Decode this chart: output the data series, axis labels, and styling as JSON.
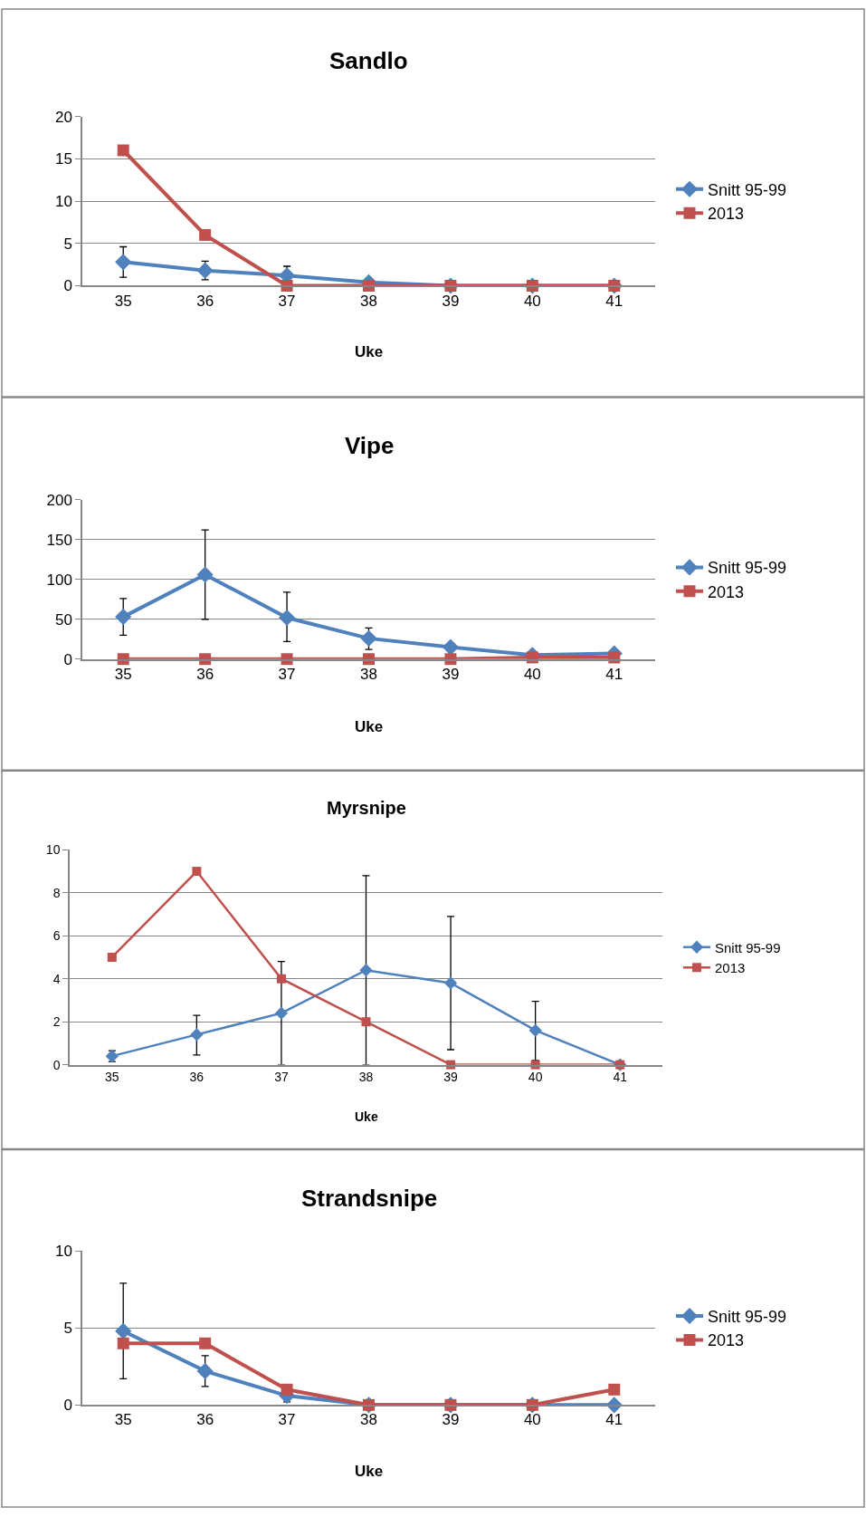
{
  "chart_data": [
    {
      "type": "line",
      "title": "Sandlo",
      "xlabel": "Uke",
      "categories": [
        "35",
        "36",
        "37",
        "38",
        "39",
        "40",
        "41"
      ],
      "ylim": [
        0,
        20
      ],
      "yticks": [
        0,
        5,
        10,
        15,
        20
      ],
      "grid": "y",
      "legend": "right",
      "series": [
        {
          "name": "Snitt 95-99",
          "color": "#4f81bd",
          "marker": "diamond",
          "values": [
            2.8,
            1.8,
            1.2,
            0.4,
            0,
            0,
            0
          ],
          "errors": [
            [
              1.0,
              4.6
            ],
            [
              0.7,
              2.9
            ],
            [
              0.1,
              2.3
            ],
            null,
            null,
            null,
            null
          ]
        },
        {
          "name": "2013",
          "color": "#c0504d",
          "marker": "square",
          "values": [
            16,
            6,
            0,
            0,
            0,
            0,
            0
          ]
        }
      ]
    },
    {
      "type": "line",
      "title": "Vipe",
      "xlabel": "Uke",
      "categories": [
        "35",
        "36",
        "37",
        "38",
        "39",
        "40",
        "41"
      ],
      "ylim": [
        0,
        200
      ],
      "yticks": [
        0,
        50,
        100,
        150,
        200
      ],
      "grid": "y",
      "legend": "right",
      "series": [
        {
          "name": "Snitt 95-99",
          "color": "#4f81bd",
          "marker": "diamond",
          "values": [
            53,
            106,
            52,
            26,
            15,
            5,
            7
          ],
          "errors": [
            [
              30,
              76
            ],
            [
              50,
              162
            ],
            [
              22,
              84
            ],
            [
              12,
              39
            ],
            null,
            null,
            null
          ]
        },
        {
          "name": "2013",
          "color": "#c0504d",
          "marker": "square",
          "values": [
            0,
            0,
            0,
            0,
            0,
            2,
            2
          ]
        }
      ]
    },
    {
      "type": "line",
      "title": "Myrsnipe",
      "xlabel": "Uke",
      "categories": [
        "35",
        "36",
        "37",
        "38",
        "39",
        "40",
        "41"
      ],
      "ylim": [
        0,
        10
      ],
      "yticks": [
        0,
        2,
        4,
        6,
        8,
        10
      ],
      "grid": "y",
      "legend": "right",
      "series": [
        {
          "name": "Snitt 95-99",
          "color": "#4f81bd",
          "marker": "diamond",
          "values": [
            0.4,
            1.4,
            2.4,
            4.4,
            3.8,
            1.6,
            0
          ],
          "errors": [
            [
              0.15,
              0.65
            ],
            [
              0.45,
              2.3
            ],
            [
              0,
              4.8
            ],
            [
              0,
              8.8
            ],
            [
              0.7,
              6.9
            ],
            [
              0.2,
              2.95
            ],
            null
          ]
        },
        {
          "name": "2013",
          "color": "#c0504d",
          "marker": "square",
          "values": [
            5,
            9,
            4,
            2,
            0,
            0,
            0
          ]
        }
      ]
    },
    {
      "type": "line",
      "title": "Strandsnipe",
      "xlabel": "Uke",
      "categories": [
        "35",
        "36",
        "37",
        "38",
        "39",
        "40",
        "41"
      ],
      "ylim": [
        0,
        10
      ],
      "yticks": [
        0,
        5,
        10
      ],
      "grid": "y",
      "legend": "right",
      "series": [
        {
          "name": "Snitt 95-99",
          "color": "#4f81bd",
          "marker": "diamond",
          "values": [
            4.8,
            2.2,
            0.6,
            0,
            0,
            0,
            0
          ],
          "errors": [
            [
              1.7,
              7.9
            ],
            [
              1.2,
              3.2
            ],
            [
              0.2,
              0.6
            ],
            null,
            null,
            null,
            null
          ]
        },
        {
          "name": "2013",
          "color": "#c0504d",
          "marker": "square",
          "values": [
            4,
            4,
            1,
            0,
            0,
            0,
            1
          ]
        }
      ]
    }
  ]
}
